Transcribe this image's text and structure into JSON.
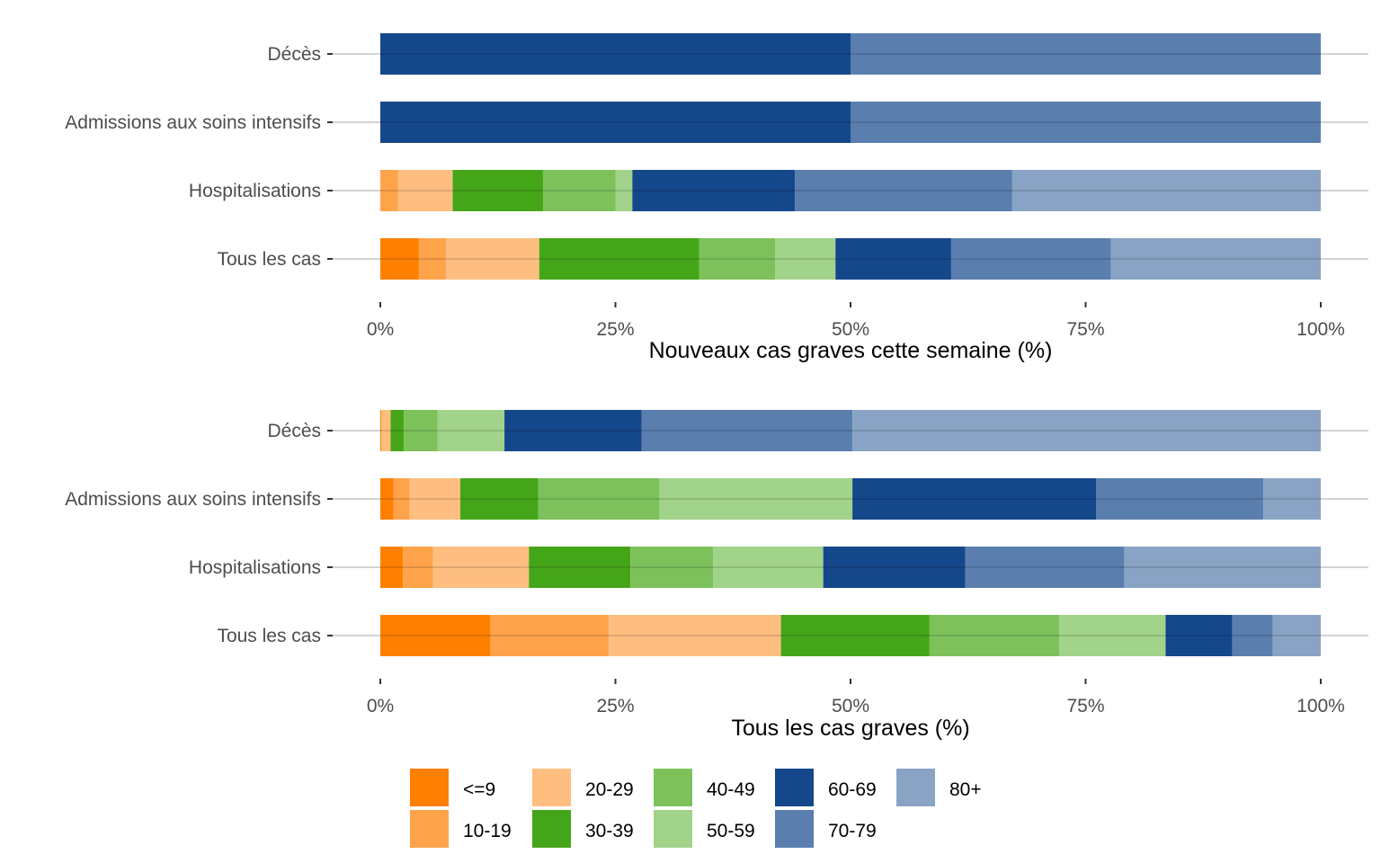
{
  "chart_data": [
    {
      "type": "bar",
      "orientation": "horizontal",
      "stacked": "percent",
      "title": "",
      "xlabel": "Nouveaux cas graves cette semaine (%)",
      "ylabel": "",
      "xlim": [
        0,
        100
      ],
      "x_ticks": [
        "0%",
        "25%",
        "50%",
        "75%",
        "100%"
      ],
      "x_tick_values": [
        0,
        25,
        50,
        75,
        100
      ],
      "grid": "horizontal major lines",
      "categories": [
        "Décès",
        "Admissions aux soins intensifs",
        "Hospitalisations",
        "Tous les cas"
      ],
      "series": [
        {
          "name": "<=9",
          "values": [
            0,
            0,
            0,
            4.1
          ]
        },
        {
          "name": "10-19",
          "values": [
            0,
            0,
            1.9,
            2.9
          ]
        },
        {
          "name": "20-29",
          "values": [
            0,
            0,
            5.8,
            9.9
          ]
        },
        {
          "name": "30-39",
          "values": [
            0,
            0,
            9.6,
            17.0
          ]
        },
        {
          "name": "40-49",
          "values": [
            0,
            0,
            7.7,
            8.1
          ]
        },
        {
          "name": "50-59",
          "values": [
            0,
            0,
            1.8,
            6.4
          ]
        },
        {
          "name": "60-69",
          "values": [
            50,
            50,
            17.3,
            12.3
          ]
        },
        {
          "name": "70-79",
          "values": [
            50,
            50,
            23.1,
            17.0
          ]
        },
        {
          "name": "80+",
          "values": [
            0,
            0,
            32.8,
            22.3
          ]
        }
      ]
    },
    {
      "type": "bar",
      "orientation": "horizontal",
      "stacked": "percent",
      "title": "",
      "xlabel": "Tous les cas graves (%)",
      "ylabel": "",
      "xlim": [
        0,
        100
      ],
      "x_ticks": [
        "0%",
        "25%",
        "50%",
        "75%",
        "100%"
      ],
      "x_tick_values": [
        0,
        25,
        50,
        75,
        100
      ],
      "grid": "horizontal major lines",
      "categories": [
        "Décès",
        "Admissions aux soins intensifs",
        "Hospitalisations",
        "Tous les cas"
      ],
      "series": [
        {
          "name": "<=9",
          "values": [
            0.1,
            1.4,
            2.4,
            11.7
          ]
        },
        {
          "name": "10-19",
          "values": [
            0.0,
            1.7,
            3.2,
            12.6
          ]
        },
        {
          "name": "20-29",
          "values": [
            1.0,
            5.4,
            10.2,
            18.3
          ]
        },
        {
          "name": "30-39",
          "values": [
            1.4,
            8.3,
            10.8,
            15.8
          ]
        },
        {
          "name": "40-49",
          "values": [
            3.6,
            12.9,
            8.8,
            13.8
          ]
        },
        {
          "name": "50-59",
          "values": [
            7.1,
            20.5,
            11.7,
            11.3
          ]
        },
        {
          "name": "60-69",
          "values": [
            14.6,
            25.9,
            15.1,
            7.1
          ]
        },
        {
          "name": "70-79",
          "values": [
            22.4,
            17.8,
            16.9,
            4.3
          ]
        },
        {
          "name": "80+",
          "values": [
            49.8,
            6.1,
            20.9,
            5.1
          ]
        }
      ]
    }
  ],
  "legend": {
    "placement": "bottom",
    "items": [
      {
        "label": "<=9",
        "color": "#ff7f00"
      },
      {
        "label": "10-19",
        "color": "#fea34a"
      },
      {
        "label": "20-29",
        "color": "#febe80"
      },
      {
        "label": "30-39",
        "color": "#45a519"
      },
      {
        "label": "40-49",
        "color": "#7dc15b"
      },
      {
        "label": "50-59",
        "color": "#a1d38a"
      },
      {
        "label": "60-69",
        "color": "#15478b"
      },
      {
        "label": "70-79",
        "color": "#5a7eae"
      },
      {
        "label": "80+",
        "color": "#89a3c4"
      }
    ]
  }
}
